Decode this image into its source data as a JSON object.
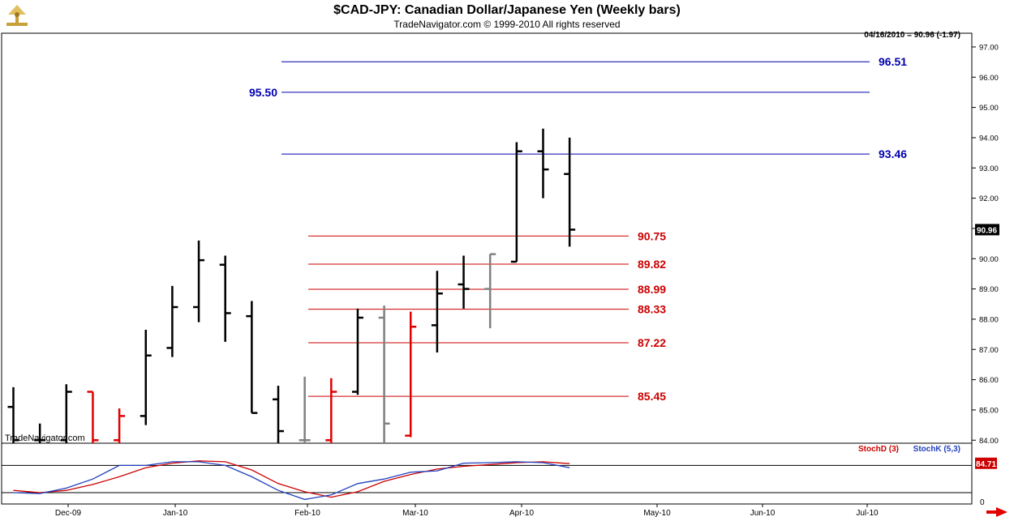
{
  "header": {
    "title": "$CAD-JPY:  Canadian Dollar/Japanese Yen  (Weekly bars)",
    "subtitle": "TradeNavigator.com © 1999-2010 All rights reserved",
    "readout": "04/16/2010 = 90.96 (-1.97)",
    "watermark": "TradeNavigator.com"
  },
  "colors": {
    "up_bar": "#000000",
    "down_bar": "#e00000",
    "neutral_bar": "#808080",
    "support": "#cc0000",
    "resistance": "#0000b0",
    "stoch_d": "#cc0000",
    "stoch_k": "#1f3fbf"
  },
  "chart_data": [
    {
      "type": "ohlc",
      "title": "$CAD-JPY:  Canadian Dollar/Japanese Yen  (Weekly bars)",
      "ylim": [
        83.9,
        97.4
      ],
      "y_ticks": [
        "84.00",
        "85.00",
        "86.00",
        "87.00",
        "88.00",
        "89.00",
        "90.00",
        "91.00",
        "92.00",
        "93.00",
        "94.00",
        "95.00",
        "96.00",
        "97.00"
      ],
      "x_labels": [
        "Dec-09",
        "Jan-10",
        "Feb-10",
        "Mar-10",
        "Apr-10",
        "May-10",
        "Jun-10",
        "Jul-10"
      ],
      "last_price": "90.96",
      "bars": [
        {
          "o": 85.1,
          "h": 85.75,
          "l": 83.9,
          "c": 84.0,
          "color": "black"
        },
        {
          "o": 84.0,
          "h": 84.55,
          "l": 83.9,
          "c": 84.0,
          "color": "black"
        },
        {
          "o": 84.0,
          "h": 85.85,
          "l": 83.9,
          "c": 85.6,
          "color": "black"
        },
        {
          "o": 85.6,
          "h": 85.6,
          "l": 83.9,
          "c": 84.0,
          "color": "red"
        },
        {
          "o": 84.0,
          "h": 85.05,
          "l": 83.9,
          "c": 84.8,
          "color": "red"
        },
        {
          "o": 84.8,
          "h": 87.65,
          "l": 84.5,
          "c": 86.8,
          "color": "black"
        },
        {
          "o": 87.05,
          "h": 89.1,
          "l": 86.75,
          "c": 88.4,
          "color": "black"
        },
        {
          "o": 88.4,
          "h": 90.6,
          "l": 87.9,
          "c": 89.95,
          "color": "black"
        },
        {
          "o": 89.8,
          "h": 90.1,
          "l": 87.25,
          "c": 88.2,
          "color": "black"
        },
        {
          "o": 88.1,
          "h": 88.6,
          "l": 84.9,
          "c": 84.9,
          "color": "black"
        },
        {
          "o": 85.35,
          "h": 85.8,
          "l": 83.9,
          "c": 84.3,
          "color": "black"
        },
        {
          "o": 84.0,
          "h": 86.1,
          "l": 83.9,
          "c": 84.0,
          "color": "gray"
        },
        {
          "o": 84.0,
          "h": 86.05,
          "l": 83.9,
          "c": 85.6,
          "color": "red"
        },
        {
          "o": 85.6,
          "h": 88.35,
          "l": 85.5,
          "c": 88.05,
          "color": "black"
        },
        {
          "o": 88.05,
          "h": 88.45,
          "l": 83.9,
          "c": 84.55,
          "color": "gray"
        },
        {
          "o": 84.15,
          "h": 88.25,
          "l": 84.1,
          "c": 87.75,
          "color": "red"
        },
        {
          "o": 87.8,
          "h": 89.6,
          "l": 86.9,
          "c": 88.85,
          "color": "black"
        },
        {
          "o": 89.15,
          "h": 90.1,
          "l": 88.35,
          "c": 89.0,
          "color": "black"
        },
        {
          "o": 89.0,
          "h": 90.15,
          "l": 87.7,
          "c": 90.15,
          "color": "gray"
        },
        {
          "o": 89.9,
          "h": 93.85,
          "l": 89.9,
          "c": 93.55,
          "color": "black"
        },
        {
          "o": 93.55,
          "h": 94.3,
          "l": 92.0,
          "c": 92.95,
          "color": "black"
        },
        {
          "o": 92.8,
          "h": 94.0,
          "l": 90.4,
          "c": 90.96,
          "color": "black"
        }
      ],
      "levels": [
        {
          "value": 96.51,
          "label": "96.51",
          "kind": "resistance"
        },
        {
          "value": 95.5,
          "label": "95.50",
          "kind": "resistance"
        },
        {
          "value": 93.46,
          "label": "93.46",
          "kind": "resistance"
        },
        {
          "value": 90.75,
          "label": "90.75",
          "kind": "support"
        },
        {
          "value": 89.82,
          "label": "89.82",
          "kind": "support"
        },
        {
          "value": 88.99,
          "label": "88.99",
          "kind": "support"
        },
        {
          "value": 88.33,
          "label": "88.33",
          "kind": "support"
        },
        {
          "value": 87.22,
          "label": "87.22",
          "kind": "support"
        },
        {
          "value": 85.45,
          "label": "85.45",
          "kind": "support"
        }
      ]
    },
    {
      "type": "line",
      "ylim": [
        -5,
        120
      ],
      "y_ticks": [
        "0"
      ],
      "guide_lines": [
        20,
        80
      ],
      "last_value": "84.71",
      "series": [
        {
          "name": "StochD (3)",
          "values": [
            25,
            20,
            25,
            38,
            55,
            75,
            85,
            90,
            88,
            70,
            40,
            22,
            10,
            22,
            45,
            60,
            72,
            78,
            82,
            86,
            88,
            84
          ]
        },
        {
          "name": "StochK (5,3)",
          "values": [
            20,
            18,
            30,
            50,
            80,
            80,
            88,
            88,
            80,
            55,
            25,
            5,
            15,
            40,
            50,
            65,
            68,
            85,
            86,
            88,
            86,
            75
          ]
        }
      ]
    }
  ]
}
